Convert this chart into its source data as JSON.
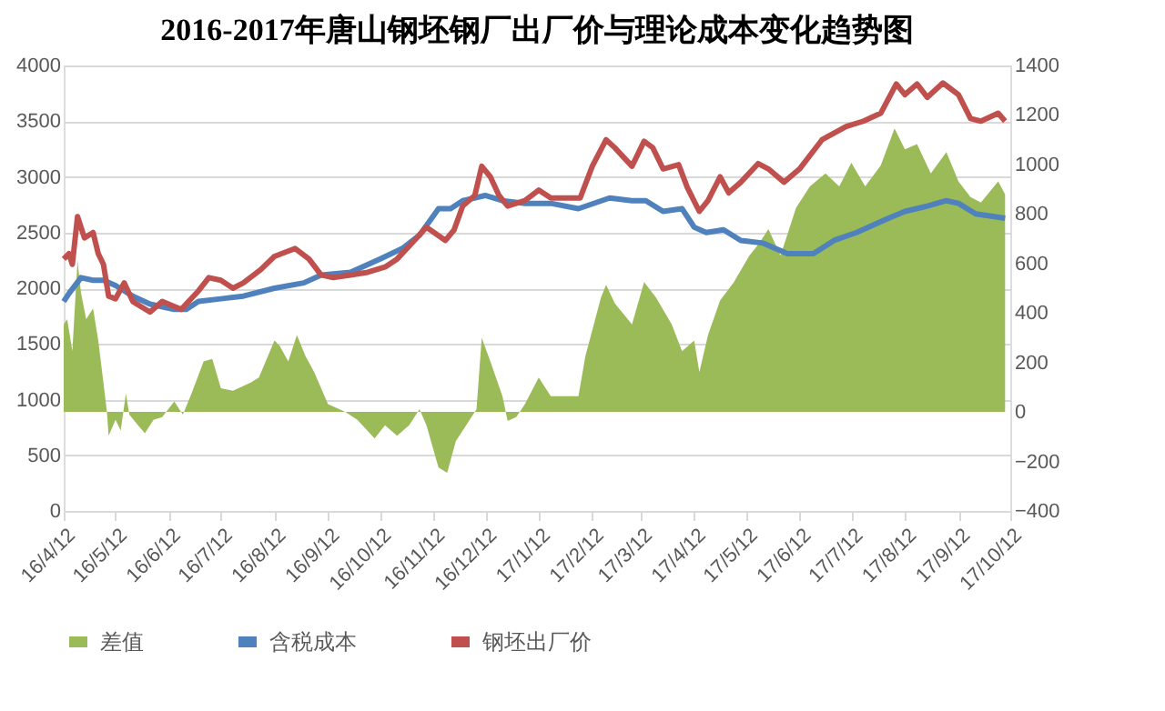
{
  "chart_data": {
    "type": "line",
    "title": "2016-2017年唐山钢坯钢厂出厂价与理论成本变化趋势图",
    "xlim": [
      "2016-04-12",
      "2017-10-12"
    ],
    "xticks": [
      {
        "value": "2016-04-12",
        "label": "16/4/12"
      },
      {
        "value": "2016-05-12",
        "label": "16/5/12"
      },
      {
        "value": "2016-06-12",
        "label": "16/6/12"
      },
      {
        "value": "2016-07-12",
        "label": "16/7/12"
      },
      {
        "value": "2016-08-12",
        "label": "16/8/12"
      },
      {
        "value": "2016-09-12",
        "label": "16/9/12"
      },
      {
        "value": "2016-10-12",
        "label": "16/10/12"
      },
      {
        "value": "2016-11-12",
        "label": "16/11/12"
      },
      {
        "value": "2016-12-12",
        "label": "16/12/12"
      },
      {
        "value": "2017-01-12",
        "label": "17/1/12"
      },
      {
        "value": "2017-02-12",
        "label": "17/2/12"
      },
      {
        "value": "2017-03-12",
        "label": "17/3/12"
      },
      {
        "value": "2017-04-12",
        "label": "17/4/12"
      },
      {
        "value": "2017-05-12",
        "label": "17/5/12"
      },
      {
        "value": "2017-06-12",
        "label": "17/6/12"
      },
      {
        "value": "2017-07-12",
        "label": "17/7/12"
      },
      {
        "value": "2017-08-12",
        "label": "17/8/12"
      },
      {
        "value": "2017-09-12",
        "label": "17/9/12"
      },
      {
        "value": "2017-10-12",
        "label": "17/10/12"
      }
    ],
    "ylim": [
      0,
      4000
    ],
    "yticks": [
      0,
      500,
      1000,
      1500,
      2000,
      2500,
      3000,
      3500,
      4000
    ],
    "y2lim": [
      -400,
      1400
    ],
    "y2ticks": [
      -400,
      -200,
      0,
      200,
      400,
      600,
      800,
      1000,
      1200,
      1400
    ],
    "grid": "y",
    "legend": "bottom",
    "line_style": "solid",
    "marker": "none",
    "series": [
      {
        "name": "差值",
        "color": "#9bbb59",
        "type": "area",
        "axis": "y2",
        "x": [
          "2016-04-12",
          "2016-04-14",
          "2016-04-17",
          "2016-04-20",
          "2016-04-22",
          "2016-04-25",
          "2016-04-29",
          "2016-05-02",
          "2016-05-05",
          "2016-05-07",
          "2016-05-08",
          "2016-05-12",
          "2016-05-15",
          "2016-05-18",
          "2016-05-20",
          "2016-05-25",
          "2016-05-29",
          "2016-06-03",
          "2016-06-08",
          "2016-06-15",
          "2016-06-20",
          "2016-06-25",
          "2016-07-02",
          "2016-07-07",
          "2016-07-12",
          "2016-07-19",
          "2016-07-29",
          "2016-08-03",
          "2016-08-12",
          "2016-08-15",
          "2016-08-20",
          "2016-08-25",
          "2016-08-30",
          "2016-09-04",
          "2016-09-12",
          "2016-09-22",
          "2016-09-29",
          "2016-10-09",
          "2016-10-15",
          "2016-10-22",
          "2016-10-29",
          "2016-11-04",
          "2016-11-08",
          "2016-11-15",
          "2016-11-20",
          "2016-11-25",
          "2016-12-02",
          "2016-12-07",
          "2016-12-10",
          "2016-12-15",
          "2016-12-22",
          "2016-12-25",
          "2016-12-30",
          "2017-01-04",
          "2017-01-12",
          "2017-01-19",
          "2017-01-29",
          "2017-02-04",
          "2017-02-08",
          "2017-02-17",
          "2017-02-20",
          "2017-02-25",
          "2017-03-07",
          "2017-03-14",
          "2017-03-21",
          "2017-03-30",
          "2017-04-05",
          "2017-04-12",
          "2017-04-15",
          "2017-04-20",
          "2017-04-27",
          "2017-05-05",
          "2017-05-14",
          "2017-05-19",
          "2017-05-25",
          "2017-06-01",
          "2017-06-10",
          "2017-06-18",
          "2017-06-27",
          "2017-07-05",
          "2017-07-12",
          "2017-07-20",
          "2017-07-29",
          "2017-08-06",
          "2017-08-12",
          "2017-08-19",
          "2017-08-27",
          "2017-09-05",
          "2017-09-12",
          "2017-09-19",
          "2017-09-25",
          "2017-10-05",
          "2017-10-09"
        ],
        "values": [
          354,
          375,
          246,
          611,
          482,
          375,
          418,
          289,
          118,
          0,
          -96,
          -32,
          -75,
          75,
          -11,
          -54,
          -86,
          -32,
          -21,
          43,
          -11,
          75,
          204,
          214,
          96,
          86,
          118,
          139,
          289,
          268,
          204,
          311,
          225,
          161,
          32,
          0,
          -32,
          -107,
          -54,
          -96,
          -54,
          11,
          -54,
          -225,
          -246,
          -118,
          -43,
          11,
          300,
          204,
          64,
          -36,
          -21,
          32,
          139,
          64,
          64,
          64,
          225,
          461,
          514,
          439,
          354,
          525,
          461,
          354,
          246,
          289,
          161,
          311,
          450,
          525,
          632,
          675,
          739,
          632,
          825,
          911,
          964,
          911,
          1007,
          911,
          996,
          1146,
          1061,
          1082,
          964,
          1050,
          932,
          868,
          846,
          932,
          879
        ]
      },
      {
        "name": "含税成本",
        "color": "#4f81bd",
        "axis": "y",
        "x": [
          "2016-04-12",
          "2016-04-15",
          "2016-04-22",
          "2016-04-29",
          "2016-05-05",
          "2016-05-12",
          "2016-05-22",
          "2016-06-01",
          "2016-06-15",
          "2016-06-22",
          "2016-06-29",
          "2016-07-12",
          "2016-07-25",
          "2016-08-12",
          "2016-08-29",
          "2016-09-08",
          "2016-09-25",
          "2016-10-12",
          "2016-10-25",
          "2016-11-04",
          "2016-11-15",
          "2016-11-22",
          "2016-11-29",
          "2016-12-12",
          "2016-12-22",
          "2017-01-04",
          "2017-01-19",
          "2017-02-04",
          "2017-02-22",
          "2017-03-07",
          "2017-03-15",
          "2017-03-25",
          "2017-04-05",
          "2017-04-12",
          "2017-04-19",
          "2017-04-29",
          "2017-05-09",
          "2017-05-22",
          "2017-06-05",
          "2017-06-20",
          "2017-07-02",
          "2017-07-15",
          "2017-08-01",
          "2017-08-12",
          "2017-08-25",
          "2017-09-05",
          "2017-09-12",
          "2017-09-22",
          "2017-10-09"
        ],
        "values": [
          1881,
          1952,
          2095,
          2071,
          2071,
          2024,
          1929,
          1857,
          1810,
          1810,
          1881,
          1905,
          1929,
          2000,
          2048,
          2119,
          2143,
          2262,
          2357,
          2476,
          2714,
          2714,
          2786,
          2833,
          2786,
          2762,
          2762,
          2714,
          2810,
          2786,
          2786,
          2690,
          2714,
          2548,
          2500,
          2524,
          2429,
          2405,
          2310,
          2310,
          2429,
          2500,
          2619,
          2690,
          2738,
          2786,
          2762,
          2667,
          2629
        ]
      },
      {
        "name": "钢坯出厂价",
        "color": "#c0504d",
        "axis": "y",
        "x": [
          "2016-04-12",
          "2016-04-15",
          "2016-04-17",
          "2016-04-20",
          "2016-04-24",
          "2016-04-29",
          "2016-05-02",
          "2016-05-05",
          "2016-05-08",
          "2016-05-12",
          "2016-05-17",
          "2016-05-22",
          "2016-05-27",
          "2016-06-01",
          "2016-06-08",
          "2016-06-19",
          "2016-06-29",
          "2016-07-05",
          "2016-07-12",
          "2016-07-19",
          "2016-07-25",
          "2016-08-04",
          "2016-08-12",
          "2016-08-24",
          "2016-09-01",
          "2016-09-08",
          "2016-09-15",
          "2016-09-25",
          "2016-10-05",
          "2016-10-15",
          "2016-10-22",
          "2016-11-01",
          "2016-11-08",
          "2016-11-19",
          "2016-11-24",
          "2016-11-29",
          "2016-12-06",
          "2016-12-10",
          "2016-12-15",
          "2016-12-20",
          "2016-12-25",
          "2017-01-04",
          "2017-01-12",
          "2017-01-19",
          "2017-02-05",
          "2017-02-12",
          "2017-02-20",
          "2017-02-25",
          "2017-03-07",
          "2017-03-14",
          "2017-03-19",
          "2017-03-25",
          "2017-04-03",
          "2017-04-08",
          "2017-04-15",
          "2017-04-20",
          "2017-04-27",
          "2017-05-02",
          "2017-05-09",
          "2017-05-19",
          "2017-05-25",
          "2017-06-03",
          "2017-06-12",
          "2017-06-25",
          "2017-07-09",
          "2017-07-19",
          "2017-07-29",
          "2017-08-07",
          "2017-08-12",
          "2017-08-19",
          "2017-08-25",
          "2017-09-03",
          "2017-09-12",
          "2017-09-19",
          "2017-09-25",
          "2017-10-05",
          "2017-10-09"
        ],
        "values": [
          2262,
          2310,
          2214,
          2643,
          2452,
          2500,
          2310,
          2214,
          1929,
          1905,
          2048,
          1881,
          1833,
          1786,
          1881,
          1810,
          1976,
          2095,
          2071,
          2000,
          2048,
          2167,
          2286,
          2357,
          2262,
          2119,
          2095,
          2119,
          2143,
          2190,
          2262,
          2429,
          2548,
          2429,
          2524,
          2738,
          2833,
          3095,
          3000,
          2833,
          2738,
          2786,
          2881,
          2810,
          2810,
          3095,
          3333,
          3262,
          3095,
          3319,
          3262,
          3071,
          3109,
          2905,
          2690,
          2786,
          3000,
          2857,
          2952,
          3119,
          3071,
          2952,
          3071,
          3333,
          3452,
          3500,
          3571,
          3833,
          3738,
          3833,
          3714,
          3843,
          3738,
          3524,
          3500,
          3571,
          3500
        ]
      }
    ]
  }
}
